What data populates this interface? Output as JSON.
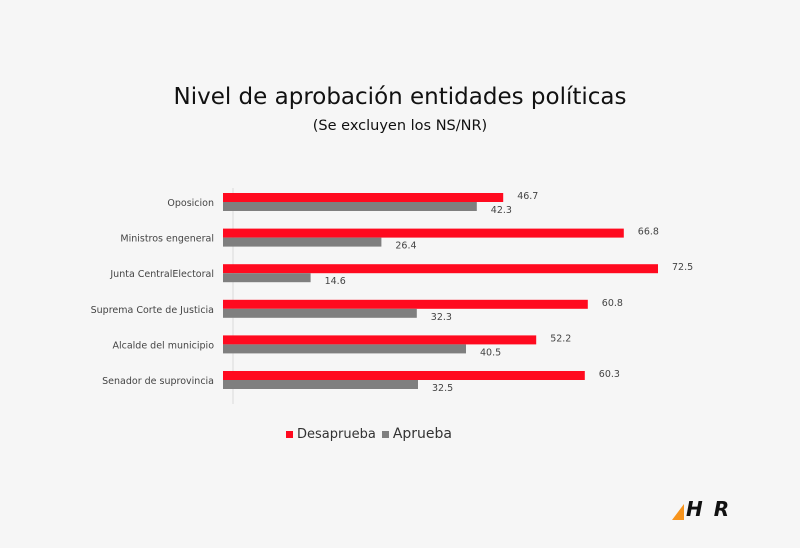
{
  "chart_data": {
    "type": "bar",
    "orientation": "horizontal",
    "title": "Nivel de aprobación entidades políticas",
    "subtitle": "(Se excluyen los NS/NR)",
    "categories": [
      "Oposicion",
      "Ministros engeneral",
      "Junta CentralElectoral",
      "Suprema Corte de Justicia",
      "Alcalde del municipio",
      "Senador de suprovincia"
    ],
    "series": [
      {
        "name": "Desaprueba",
        "color": "#ff0a1f",
        "values": [
          46.7,
          66.8,
          72.5,
          60.8,
          52.2,
          60.3
        ]
      },
      {
        "name": "Aprueba",
        "color": "#7f7f7f",
        "values": [
          42.3,
          26.4,
          14.6,
          32.3,
          40.5,
          32.5
        ]
      }
    ],
    "xlim": [
      0,
      80
    ],
    "grid": false,
    "legend_position": "bottom"
  },
  "logo": {
    "text": "H R",
    "accent": "#f7941d"
  }
}
